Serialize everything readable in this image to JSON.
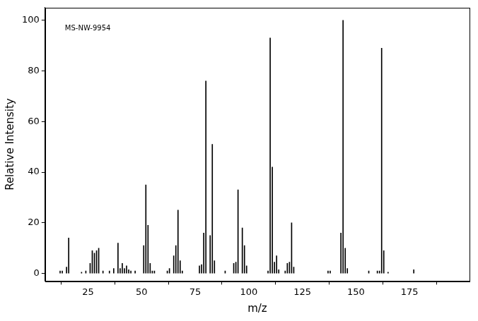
{
  "chart_data": {
    "type": "bar",
    "annotation": "MS-NW-9954",
    "x_label": "m/z",
    "y_label": "Relative Intensity",
    "x": [
      12,
      13,
      15,
      16,
      22,
      24,
      26,
      27,
      28,
      29,
      30,
      32,
      35,
      37,
      39,
      40,
      41,
      42,
      43,
      44,
      45,
      47,
      51,
      52,
      53,
      54,
      55,
      56,
      62,
      63,
      65,
      66,
      67,
      68,
      69,
      77,
      78,
      79,
      80,
      82,
      83,
      84,
      89,
      93,
      94,
      95,
      97,
      98,
      99,
      109,
      110,
      111,
      112,
      113,
      114,
      117,
      118,
      119,
      120,
      121,
      137,
      138,
      143,
      144,
      145,
      146,
      156,
      160,
      161,
      162,
      163,
      165,
      177
    ],
    "values": [
      1,
      1,
      2.5,
      14,
      0.5,
      1,
      4,
      9,
      8,
      9,
      10,
      1,
      1,
      2,
      12,
      2,
      4,
      2,
      3,
      1.5,
      1,
      1,
      11,
      35,
      19,
      4,
      1,
      1,
      1,
      2,
      7,
      11,
      25,
      5,
      1,
      3,
      3.5,
      16,
      76,
      15,
      51,
      5,
      1,
      4,
      4.5,
      33,
      18,
      11,
      3,
      1,
      93,
      42,
      4.5,
      7,
      1.5,
      1,
      4,
      4.5,
      20,
      2.5,
      1,
      1,
      16,
      100,
      10,
      2,
      1,
      1,
      1,
      89,
      9,
      0.5,
      1.5
    ],
    "color": "#000000",
    "xlim": [
      5,
      203
    ],
    "xticks": [
      25,
      50,
      75,
      100,
      125,
      150,
      175
    ],
    "ylim": [
      -3,
      105
    ],
    "yticks": [
      0,
      20,
      40,
      60,
      80,
      100
    ],
    "grid": false
  }
}
